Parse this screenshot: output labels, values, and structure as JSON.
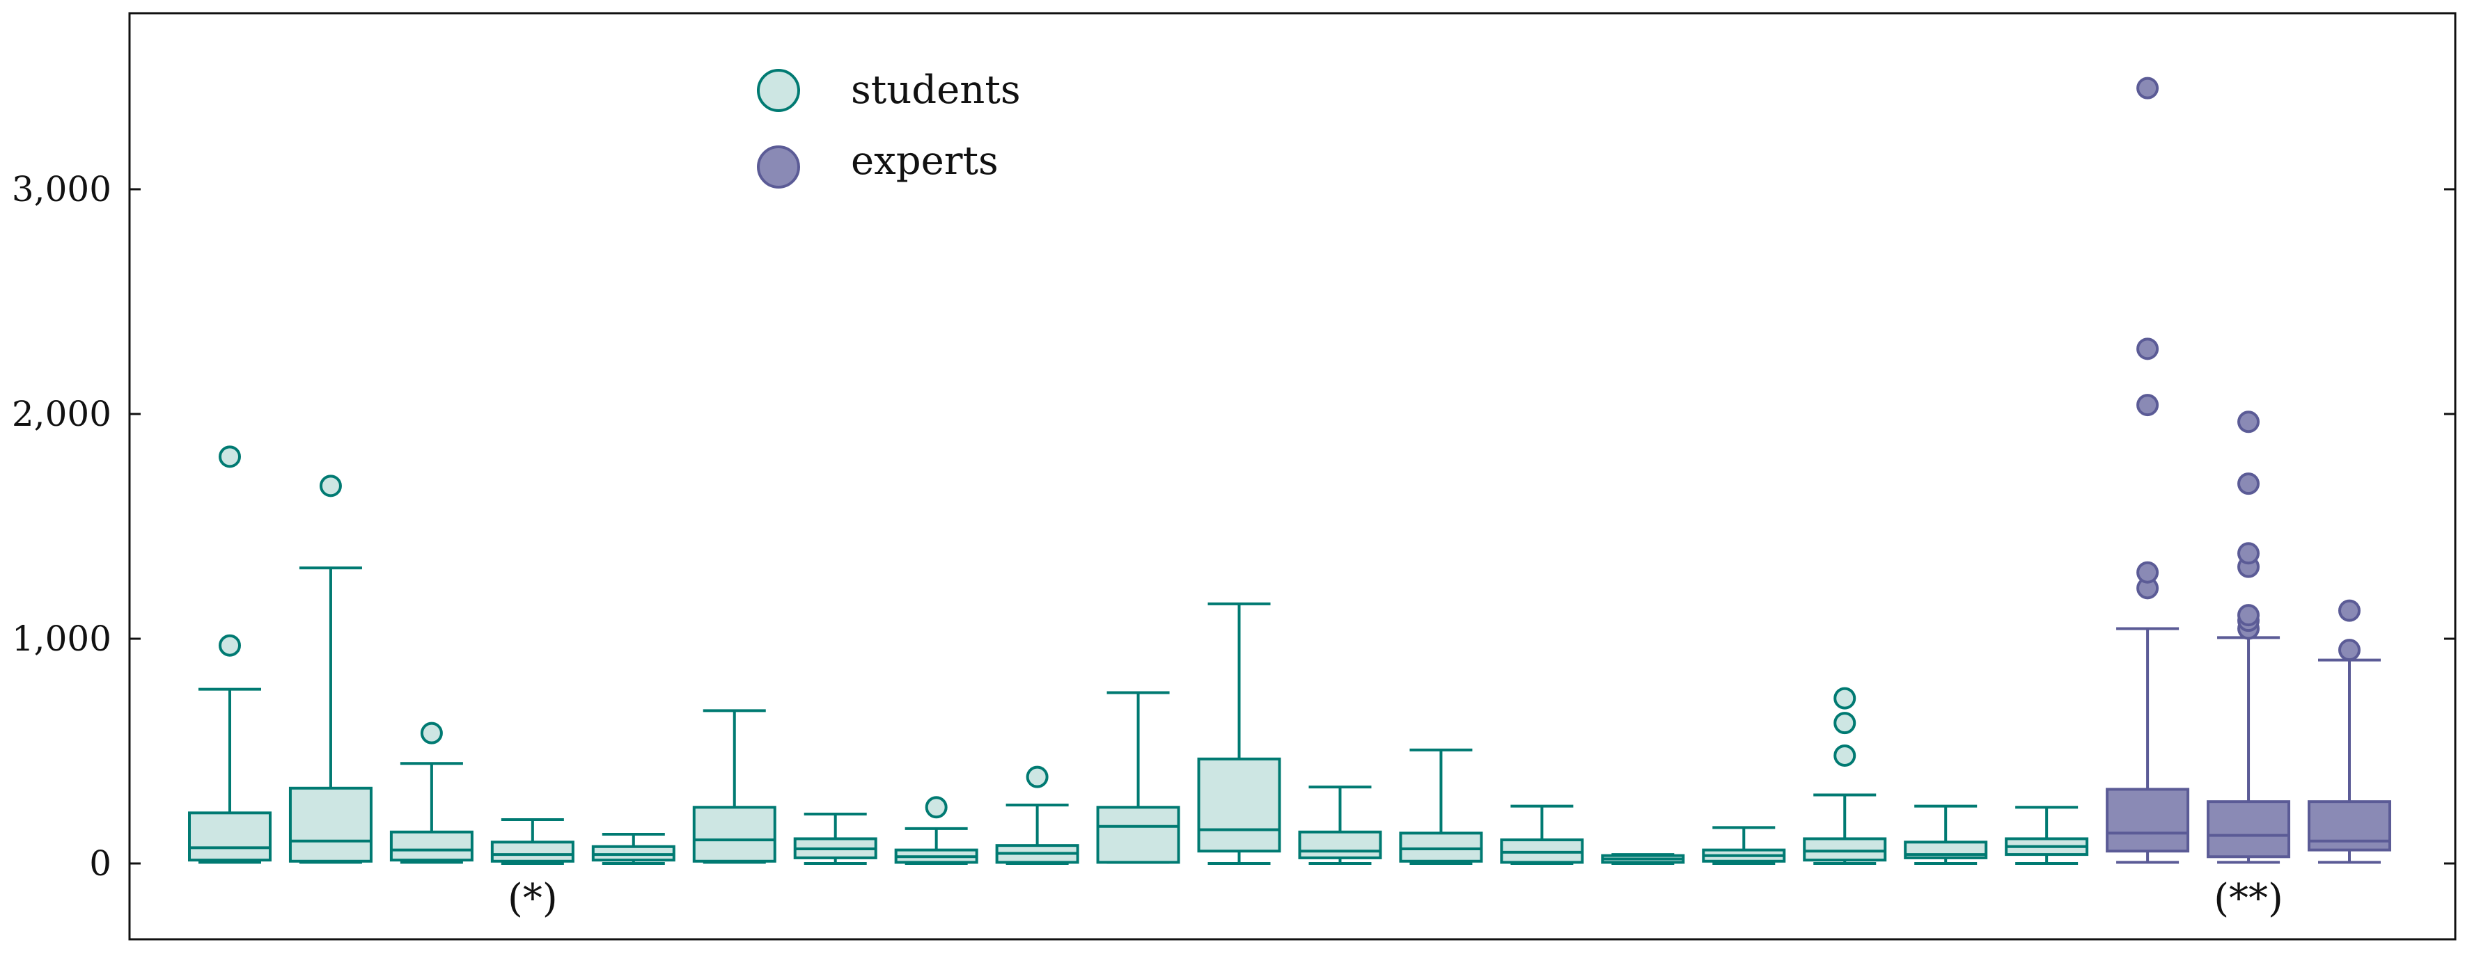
{
  "chart_data": {
    "type": "boxplot",
    "title": "",
    "xlabel": "",
    "ylabel": "",
    "ylim": [
      -350,
      3800
    ],
    "yticks": [
      0,
      1000,
      2000,
      3000
    ],
    "ytick_labels": [
      "0",
      "1,000",
      "2,000",
      "3,000"
    ],
    "grid": false,
    "legend_position": "top-left",
    "series": [
      {
        "name": "students",
        "fill": "#cde6e3",
        "stroke": "#007a72"
      },
      {
        "name": "experts",
        "fill": "#8a8ab5",
        "stroke": "#5b5b96"
      }
    ],
    "boxes": [
      {
        "series": "students",
        "min": 5,
        "q1": 15,
        "median": 70,
        "q3": 225,
        "max": 775,
        "outliers": [
          970,
          1810
        ]
      },
      {
        "series": "students",
        "min": 5,
        "q1": 10,
        "median": 100,
        "q3": 335,
        "max": 1315,
        "outliers": [
          1680
        ]
      },
      {
        "series": "students",
        "min": 5,
        "q1": 15,
        "median": 60,
        "q3": 140,
        "max": 445,
        "outliers": [
          580
        ]
      },
      {
        "series": "students",
        "min": 0,
        "q1": 10,
        "median": 40,
        "q3": 95,
        "max": 195,
        "outliers": []
      },
      {
        "series": "students",
        "min": 0,
        "q1": 15,
        "median": 40,
        "q3": 75,
        "max": 130,
        "outliers": []
      },
      {
        "series": "students",
        "min": 5,
        "q1": 10,
        "median": 105,
        "q3": 250,
        "max": 680,
        "outliers": []
      },
      {
        "series": "students",
        "min": 0,
        "q1": 25,
        "median": 65,
        "q3": 110,
        "max": 220,
        "outliers": []
      },
      {
        "series": "students",
        "min": 0,
        "q1": 5,
        "median": 30,
        "q3": 60,
        "max": 155,
        "outliers": [
          250
        ]
      },
      {
        "series": "students",
        "min": 0,
        "q1": 5,
        "median": 45,
        "q3": 80,
        "max": 260,
        "outliers": [
          385
        ]
      },
      {
        "series": "students",
        "min": 5,
        "q1": 5,
        "median": 165,
        "q3": 250,
        "max": 760,
        "outliers": []
      },
      {
        "series": "students",
        "min": 0,
        "q1": 55,
        "median": 150,
        "q3": 465,
        "max": 1155,
        "outliers": []
      },
      {
        "series": "students",
        "min": 0,
        "q1": 25,
        "median": 55,
        "q3": 140,
        "max": 340,
        "outliers": []
      },
      {
        "series": "students",
        "min": 0,
        "q1": 10,
        "median": 65,
        "q3": 135,
        "max": 505,
        "outliers": []
      },
      {
        "series": "students",
        "min": 0,
        "q1": 5,
        "median": 50,
        "q3": 105,
        "max": 255,
        "outliers": []
      },
      {
        "series": "students",
        "min": 0,
        "q1": 5,
        "median": 20,
        "q3": 35,
        "max": 40,
        "outliers": []
      },
      {
        "series": "students",
        "min": 0,
        "q1": 10,
        "median": 35,
        "q3": 60,
        "max": 160,
        "outliers": []
      },
      {
        "series": "students",
        "min": 0,
        "q1": 15,
        "median": 55,
        "q3": 110,
        "max": 305,
        "outliers": [
          480,
          625,
          735
        ]
      },
      {
        "series": "students",
        "min": 0,
        "q1": 25,
        "median": 40,
        "q3": 95,
        "max": 255,
        "outliers": []
      },
      {
        "series": "students",
        "min": 0,
        "q1": 40,
        "median": 75,
        "q3": 110,
        "max": 250,
        "outliers": []
      },
      {
        "series": "experts",
        "min": 5,
        "q1": 55,
        "median": 135,
        "q3": 330,
        "max": 1045,
        "outliers": [
          1225,
          1295,
          2040,
          2290,
          3450
        ]
      },
      {
        "series": "experts",
        "min": 5,
        "q1": 30,
        "median": 125,
        "q3": 275,
        "max": 1005,
        "outliers": [
          1045,
          1080,
          1105,
          1320,
          1380,
          1690,
          1965
        ]
      },
      {
        "series": "experts",
        "min": 5,
        "q1": 60,
        "median": 100,
        "q3": 275,
        "max": 905,
        "outliers": [
          950,
          1125
        ]
      }
    ],
    "annotations": [
      {
        "text": "(*)",
        "box_index": 3
      },
      {
        "text": "(**)",
        "box_index": 20
      }
    ]
  }
}
